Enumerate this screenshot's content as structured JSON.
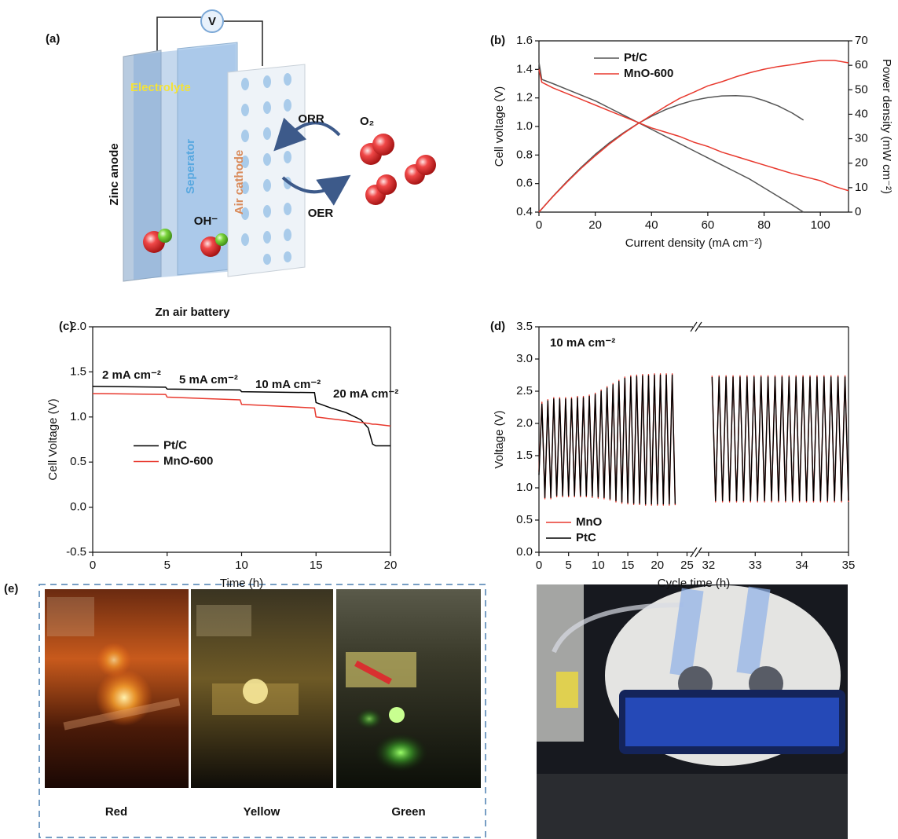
{
  "diagram": {
    "label": "(a)",
    "voltmeter": "V",
    "electrolyte": "Electrolyte",
    "anode": "Zinc anode",
    "separator": "Seperator",
    "cathode": "Air cathode",
    "orr": "ORR",
    "oxygen": "O₂",
    "hydroxide": "OH⁻",
    "oer": "OER",
    "caption": "Zn air battery"
  },
  "photos": {
    "label": "(e)",
    "captions": [
      "Red",
      "Yellow",
      "Green"
    ]
  },
  "chart_data": [
    {
      "type": "line",
      "label": "(b)",
      "xlabel": "Current density (mA cm⁻²)",
      "ylabel": "Cell voltage (V)",
      "y2label": "Power density (mW cm⁻²)",
      "x": [
        0,
        1,
        5,
        10,
        15,
        20,
        25,
        30,
        35,
        40,
        45,
        50,
        55,
        60,
        65,
        70,
        75,
        80,
        85,
        90,
        94,
        100,
        105,
        110
      ],
      "xlim": [
        0,
        110
      ],
      "xticks": [
        0,
        20,
        40,
        60,
        80,
        100
      ],
      "ylim": [
        0.4,
        1.6
      ],
      "yticks": [
        0.4,
        0.6,
        0.8,
        {
          "value": 1.0,
          "label": "1.0"
        },
        1.2,
        1.4,
        1.6
      ],
      "y2lim": [
        0,
        70
      ],
      "y2ticks": [
        0,
        10,
        20,
        30,
        40,
        50,
        60,
        70
      ],
      "legend": "upper left",
      "series": [
        {
          "name": "Pt/C",
          "color": "#555555",
          "values": [
            1.45,
            1.33,
            1.3,
            1.26,
            1.22,
            1.18,
            1.13,
            1.08,
            1.03,
            0.98,
            0.93,
            0.88,
            0.83,
            0.78,
            0.73,
            0.68,
            0.63,
            0.57,
            0.51,
            0.45,
            0.4,
            null,
            null,
            null
          ]
        },
        {
          "name": "MnO-600",
          "color": "#e8392e",
          "values": [
            1.4,
            1.31,
            1.27,
            1.23,
            1.19,
            1.15,
            1.11,
            1.07,
            1.03,
            0.99,
            0.96,
            0.93,
            0.89,
            0.86,
            0.82,
            0.79,
            0.76,
            0.73,
            0.7,
            0.67,
            0.65,
            0.62,
            0.58,
            0.55
          ]
        },
        {
          "name": "Pt/C",
          "color": "#555555",
          "axis": "y2",
          "values": [
            0,
            1.3,
            6.5,
            12.6,
            18.3,
            23.6,
            28.3,
            32.4,
            36.1,
            39.2,
            41.9,
            44.0,
            45.7,
            46.8,
            47.5,
            47.6,
            47.3,
            45.6,
            43.4,
            40.5,
            37.6,
            null,
            null,
            null
          ]
        },
        {
          "name": "MnO-600",
          "color": "#e8392e",
          "axis": "y2",
          "values": [
            0,
            1.3,
            6.4,
            12.3,
            17.9,
            23.0,
            27.8,
            32.1,
            36.0,
            39.6,
            43.2,
            46.5,
            49.0,
            51.6,
            53.3,
            55.3,
            57.0,
            58.4,
            59.5,
            60.3,
            61.1,
            62.0,
            62.0,
            61.0
          ]
        }
      ]
    },
    {
      "type": "line",
      "label": "(c)",
      "xlabel": "Time (h)",
      "ylabel": "Cell Voltage (V)",
      "x": [
        0,
        4.9,
        5,
        9.9,
        10,
        14.9,
        15,
        16,
        17,
        18,
        18.5,
        18.8,
        19,
        20
      ],
      "xlim": [
        0,
        20
      ],
      "xticks": [
        0,
        5,
        10,
        15,
        20
      ],
      "ylim": [
        -0.5,
        2.0
      ],
      "yticks": [
        -0.5,
        {
          "value": 0.0,
          "label": "0.0"
        },
        0.5,
        {
          "value": 1.0,
          "label": "1.0"
        },
        1.5,
        {
          "value": 2.0,
          "label": "2.0"
        }
      ],
      "legend": "center left",
      "annotations": [
        "2 mA cm⁻²",
        "5 mA cm⁻²",
        "10 mA cm⁻²",
        "20 mA cm⁻²"
      ],
      "series": [
        {
          "name": "Pt/C",
          "color": "#000000",
          "values": [
            1.34,
            1.33,
            1.31,
            1.3,
            1.28,
            1.27,
            1.16,
            1.1,
            1.05,
            0.97,
            0.88,
            0.7,
            0.68,
            0.68
          ]
        },
        {
          "name": "MnO-600",
          "color": "#e8392e",
          "values": [
            1.26,
            1.25,
            1.22,
            1.19,
            1.14,
            1.1,
            1.0,
            0.98,
            0.96,
            0.94,
            0.93,
            0.92,
            0.92,
            0.9
          ]
        }
      ]
    },
    {
      "type": "line",
      "label": "(d)",
      "xlabel": "Cycle time (h)",
      "ylabel": "Voltage (V)",
      "x": [
        0,
        0.5,
        1,
        1.5,
        2,
        2.5,
        3,
        3.5,
        4,
        4.5,
        5,
        5.5,
        6,
        6.5,
        7,
        7.5,
        8,
        8.5,
        9,
        9.5,
        10,
        10.5,
        11,
        11.5,
        12,
        12.5,
        13,
        13.5,
        14,
        14.5,
        15,
        15.5,
        16,
        16.5,
        17,
        17.5,
        18,
        18.5,
        19,
        19.5,
        20,
        20.5,
        21,
        21.5,
        22,
        22.5,
        23,
        32,
        32.075,
        32.15,
        32.225,
        32.3,
        32.375,
        32.45,
        32.525,
        32.6,
        32.675,
        32.75,
        32.825,
        32.9,
        32.975,
        33.05,
        33.125,
        33.2,
        33.275,
        33.35,
        33.425,
        33.5,
        33.575,
        33.65,
        33.725,
        33.8,
        33.875,
        33.95,
        34.025,
        34.1,
        34.175,
        34.25,
        34.325,
        34.4,
        34.475,
        34.55,
        34.625,
        34.7,
        34.775,
        34.85,
        34.925,
        35
      ],
      "xlim": [
        [
          0,
          26
        ],
        [
          31.8,
          35
        ]
      ],
      "xticks": [
        0,
        5,
        10,
        15,
        20,
        25,
        32,
        33,
        34,
        35
      ],
      "ylim": [
        0,
        3.5
      ],
      "yticks": [
        {
          "value": 0.0,
          "label": "0.0"
        },
        0.5,
        {
          "value": 1.0,
          "label": "1.0"
        },
        1.5,
        {
          "value": 2.0,
          "label": "2.0"
        },
        2.5,
        {
          "value": 3.0,
          "label": "3.0"
        },
        3.5
      ],
      "legend": "lower left",
      "annotations": [
        "10 mA cm⁻²"
      ],
      "series": [
        {
          "name": "MnO",
          "color": "#e8392e",
          "values": [
            1.25,
            2.33,
            0.83,
            2.37,
            0.83,
            2.4,
            0.86,
            2.4,
            0.86,
            2.4,
            0.86,
            2.4,
            0.86,
            2.42,
            0.86,
            2.42,
            0.86,
            2.44,
            0.85,
            2.47,
            0.84,
            2.52,
            0.83,
            2.57,
            0.81,
            2.62,
            0.78,
            2.67,
            0.76,
            2.72,
            0.75,
            2.74,
            0.74,
            2.75,
            0.74,
            2.76,
            0.73,
            2.76,
            0.73,
            2.77,
            0.73,
            2.77,
            0.73,
            2.77,
            0.73,
            2.77,
            0.73,
            null,
            2.74,
            0.78,
            2.74,
            0.78,
            2.74,
            0.78,
            2.74,
            0.78,
            2.74,
            0.78,
            2.74,
            0.78,
            2.74,
            0.78,
            2.74,
            0.78,
            2.74,
            0.78,
            2.74,
            0.78,
            2.74,
            0.78,
            2.74,
            0.78,
            2.74,
            0.78,
            2.74,
            0.78,
            2.74,
            0.78,
            2.74,
            0.78,
            2.74,
            0.78,
            2.74,
            0.78,
            2.74,
            0.78,
            2.74,
            0.78
          ]
        },
        {
          "name": "PtC",
          "color": "#000000",
          "values": [
            1.2,
            2.3,
            0.85,
            2.35,
            0.85,
            2.38,
            0.88,
            2.38,
            0.88,
            2.38,
            0.88,
            2.38,
            0.88,
            2.4,
            0.88,
            2.4,
            0.88,
            2.42,
            0.87,
            2.45,
            0.86,
            2.5,
            0.85,
            2.55,
            0.83,
            2.6,
            0.8,
            2.65,
            0.78,
            2.7,
            0.77,
            2.72,
            0.76,
            2.73,
            0.76,
            2.74,
            0.75,
            2.74,
            0.75,
            2.75,
            0.75,
            2.75,
            0.75,
            2.75,
            0.75,
            2.75,
            0.75,
            null,
            2.72,
            0.8,
            2.72,
            0.8,
            2.72,
            0.8,
            2.72,
            0.8,
            2.72,
            0.8,
            2.72,
            0.8,
            2.72,
            0.8,
            2.72,
            0.8,
            2.72,
            0.8,
            2.72,
            0.8,
            2.72,
            0.8,
            2.72,
            0.8,
            2.72,
            0.8,
            2.72,
            0.8,
            2.72,
            0.8,
            2.72,
            0.8,
            2.72,
            0.8,
            2.72,
            0.8,
            2.72,
            0.8,
            2.72,
            0.8
          ]
        }
      ]
    }
  ]
}
